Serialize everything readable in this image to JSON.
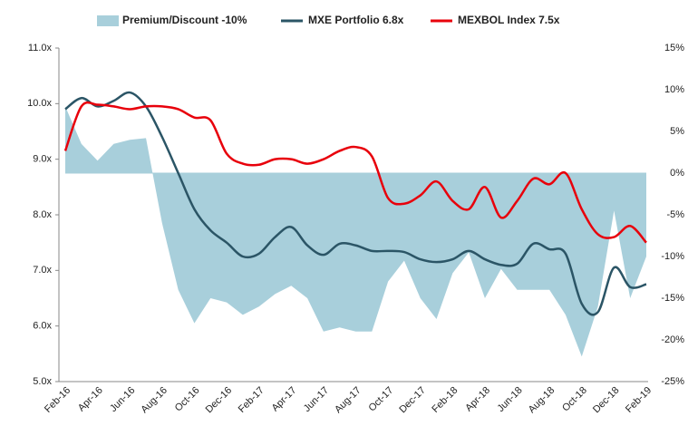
{
  "chart_data": {
    "type": "line",
    "categories": [
      "Feb-16",
      null,
      "Apr-16",
      null,
      "Jun-16",
      null,
      "Aug-16",
      null,
      "Oct-16",
      null,
      "Dec-16",
      null,
      "Feb-17",
      null,
      "Apr-17",
      null,
      "Jun-17",
      null,
      "Aug-17",
      null,
      "Oct-17",
      null,
      "Dec-17",
      null,
      "Feb-18",
      null,
      "Apr-18",
      null,
      "Jun-18",
      null,
      "Aug-18",
      null,
      "Oct-18",
      null,
      "Dec-18",
      null,
      "Feb-19"
    ],
    "series": [
      {
        "name": "Premium/Discount -10%",
        "type": "area",
        "axis": "y2",
        "color": "#a8cfdb",
        "values": [
          8,
          3.5,
          1.5,
          3.5,
          4,
          4.2,
          -6,
          -14,
          -18,
          -15,
          -15.5,
          -17,
          -16,
          -14.5,
          -13.5,
          -15,
          -19,
          -18.5,
          -19,
          -19,
          -13,
          -10.5,
          -15,
          -17.5,
          -12,
          -9.5,
          -15,
          -11.5,
          -14,
          -14,
          -14,
          -17,
          -22,
          -16,
          -4.5,
          -15,
          -10
        ]
      },
      {
        "name": "MXE Portfolio 6.8x",
        "type": "line",
        "color": "#2b5566",
        "values": [
          9.9,
          10.1,
          9.95,
          10.05,
          10.2,
          9.95,
          9.4,
          8.75,
          8.1,
          7.72,
          7.5,
          7.25,
          7.3,
          7.6,
          7.78,
          7.45,
          7.28,
          7.48,
          7.45,
          7.35,
          7.35,
          7.33,
          7.2,
          7.15,
          7.2,
          7.35,
          7.2,
          7.1,
          7.12,
          7.48,
          7.38,
          7.3,
          6.4,
          6.25,
          7.05,
          6.7,
          6.75
        ]
      },
      {
        "name": "MEXBOL Index 7.5x",
        "type": "line",
        "color": "#e8000b",
        "values": [
          9.15,
          9.95,
          9.98,
          9.95,
          9.9,
          9.95,
          9.95,
          9.9,
          9.75,
          9.7,
          9.1,
          8.92,
          8.9,
          9.0,
          9.0,
          8.92,
          9.0,
          9.15,
          9.22,
          9.05,
          8.3,
          8.2,
          8.35,
          8.6,
          8.25,
          8.1,
          8.5,
          7.95,
          8.25,
          8.65,
          8.55,
          8.75,
          8.1,
          7.65,
          7.6,
          7.8,
          7.5
        ]
      }
    ],
    "ylim": [
      5,
      11
    ],
    "yticks": [
      {
        "value": 5,
        "label": "5.0x"
      },
      {
        "value": 6,
        "label": "6.0x"
      },
      {
        "value": 7,
        "label": "7.0x"
      },
      {
        "value": 8,
        "label": "8.0x"
      },
      {
        "value": 9,
        "label": "9.0x"
      },
      {
        "value": 10,
        "label": "10.0x"
      },
      {
        "value": 11,
        "label": "11.0x"
      }
    ],
    "y2lim": [
      -25,
      15
    ],
    "y2ticks": [
      {
        "value": -25,
        "label": "-25%"
      },
      {
        "value": -20,
        "label": "-20%"
      },
      {
        "value": -15,
        "label": "-15%"
      },
      {
        "value": -10,
        "label": "-10%"
      },
      {
        "value": -5,
        "label": "-5%"
      },
      {
        "value": 0,
        "label": "0%"
      },
      {
        "value": 5,
        "label": "5%"
      },
      {
        "value": 10,
        "label": "10%"
      },
      {
        "value": 15,
        "label": "15%"
      }
    ],
    "legend": "top"
  }
}
